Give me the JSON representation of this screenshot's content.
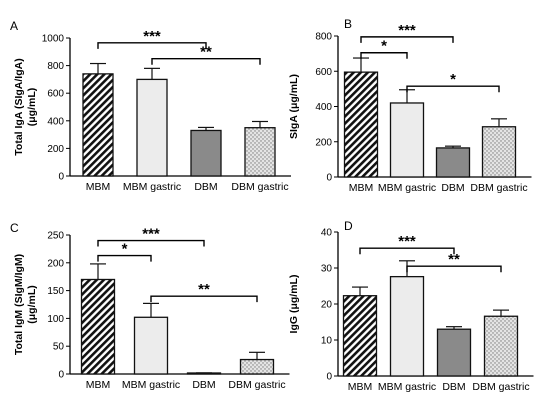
{
  "chart_data": [
    {
      "panel": "A",
      "type": "bar",
      "ylabel_lines": [
        "Total IgA (SIgA/IgA)",
        "(μg/mL)"
      ],
      "ylim": [
        0,
        1000
      ],
      "yticks": [
        0,
        200,
        400,
        600,
        800,
        1000
      ],
      "categories": [
        "MBM",
        "MBM gastric",
        "DBM",
        "DBM gastric"
      ],
      "values": [
        740,
        700,
        330,
        350
      ],
      "errors": [
        75,
        80,
        22,
        45
      ],
      "brackets": [
        {
          "from": 0,
          "to": 2,
          "at": 965,
          "label": "***"
        },
        {
          "from": 1,
          "to": 3,
          "at": 850,
          "label": "**"
        }
      ]
    },
    {
      "panel": "B",
      "type": "bar",
      "ylabel_lines": [
        "SIgA (μg/mL)"
      ],
      "ylim": [
        0,
        800
      ],
      "yticks": [
        0,
        200,
        400,
        600,
        800
      ],
      "categories": [
        "MBM",
        "MBM gastric",
        "DBM",
        "DBM gastric"
      ],
      "values": [
        595,
        420,
        165,
        285
      ],
      "errors": [
        80,
        75,
        10,
        45
      ],
      "brackets": [
        {
          "from": 0,
          "to": 2,
          "at": 795,
          "label": "***"
        },
        {
          "from": 0,
          "to": 1,
          "at": 705,
          "label": "*"
        },
        {
          "from": 1,
          "to": 3,
          "at": 515,
          "label": "*"
        }
      ]
    },
    {
      "panel": "C",
      "type": "bar",
      "ylabel_lines": [
        "Total IgM (SIgM/IgM)",
        "(μg/mL)"
      ],
      "ylim": [
        0,
        250
      ],
      "yticks": [
        0,
        50,
        100,
        150,
        200,
        250
      ],
      "categories": [
        "MBM",
        "MBM gastric",
        "DBM",
        "DBM gastric"
      ],
      "values": [
        170,
        102,
        1,
        26
      ],
      "errors": [
        28,
        25,
        1,
        13
      ],
      "brackets": [
        {
          "from": 0,
          "to": 2,
          "at": 240,
          "label": "***"
        },
        {
          "from": 0,
          "to": 1,
          "at": 213,
          "label": "*"
        },
        {
          "from": 1,
          "to": 3,
          "at": 140,
          "label": "**"
        }
      ]
    },
    {
      "panel": "D",
      "type": "bar",
      "ylabel_lines": [
        "IgG (μg/mL)"
      ],
      "ylim": [
        0,
        40
      ],
      "yticks": [
        0,
        10,
        20,
        30,
        40
      ],
      "categories": [
        "MBM",
        "MBM gastric",
        "DBM",
        "DBM gastric"
      ],
      "values": [
        22.3,
        27.6,
        13,
        16.6
      ],
      "errors": [
        2.4,
        4.4,
        0.7,
        1.7
      ],
      "brackets": [
        {
          "from": 0,
          "to": 2,
          "at": 35.5,
          "label": "***"
        },
        {
          "from": 1,
          "to": 3,
          "at": 30.5,
          "label": "**"
        }
      ]
    }
  ]
}
